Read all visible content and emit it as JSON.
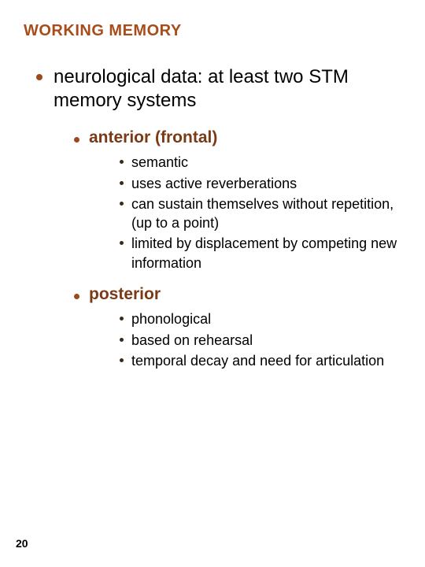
{
  "colors": {
    "title": "#a84c1a",
    "bullet_l1": "#9c4a1c",
    "bullet_l2": "#9c4a1c",
    "l2_text": "#7a3a16",
    "bullet_l3": "#3a2a1a",
    "body_text": "#000000"
  },
  "title": "WORKING MEMORY",
  "l1_text": "neurological data: at least two STM memory systems",
  "sections": [
    {
      "heading": "anterior (frontal)",
      "items": [
        "semantic",
        "uses active reverberations",
        "can sustain themselves without repetition, (up to a point)",
        "limited by displacement by competing new information"
      ]
    },
    {
      "heading": "posterior",
      "items": [
        "phonological",
        "based on rehearsal",
        "temporal decay and need for articulation"
      ]
    }
  ],
  "page_number": "20"
}
